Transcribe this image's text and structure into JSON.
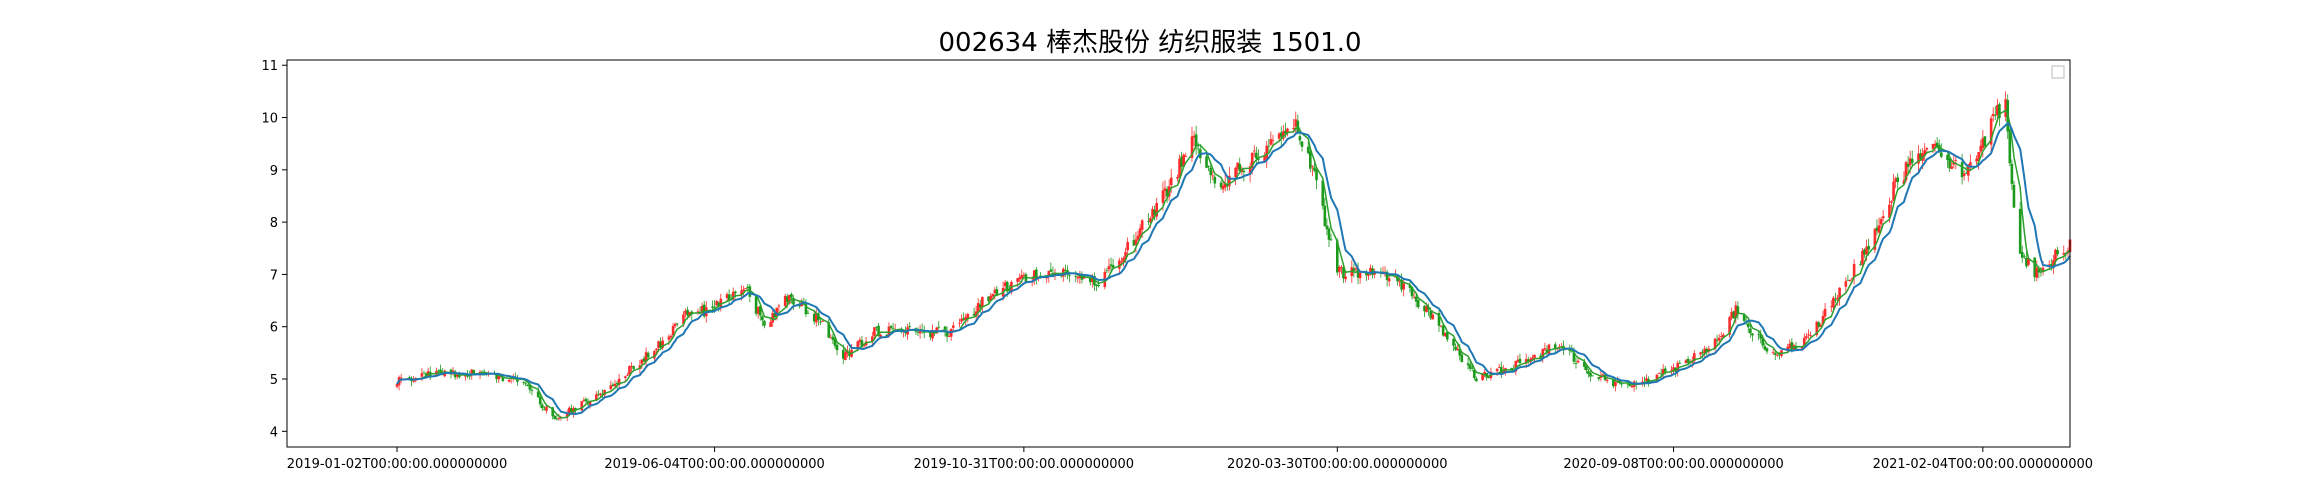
{
  "chart_data": {
    "type": "candlestick",
    "title": "002634 棒杰股份 纺织服装 1501.0",
    "xlabel": "",
    "ylabel": "",
    "ylim": [
      3.7,
      11.1
    ],
    "yticks": [
      4,
      5,
      6,
      7,
      8,
      9,
      10,
      11
    ],
    "ytick_labels": [
      "4",
      "5",
      "6",
      "7",
      "8",
      "9",
      "10",
      "11"
    ],
    "xrange": [
      "2018-11-10",
      "2021-03-18"
    ],
    "xticks": [
      "2019-01-02",
      "2019-06-04",
      "2019-10-31",
      "2020-03-30",
      "2020-09-08",
      "2021-02-04"
    ],
    "xtick_labels": [
      "2019-01-02T00:00:00.000000000",
      "2019-06-04T00:00:00.000000000",
      "2019-10-31T00:00:00.000000000",
      "2020-03-30T00:00:00.000000000",
      "2020-09-08T00:00:00.000000000",
      "2021-02-04T00:00:00.000000000"
    ],
    "grid": false,
    "legend": {
      "placement": "top-right",
      "entries": []
    },
    "colors": {
      "up": "#ff2a2a",
      "down": "#1c9a1c",
      "ma": "#1f77b4",
      "ma_secondary": "#2ca02c",
      "axis": "#000000"
    },
    "price_path": [
      [
        "2019-01-02",
        4.95
      ],
      [
        "2019-01-20",
        5.1
      ],
      [
        "2019-02-15",
        5.1
      ],
      [
        "2019-03-05",
        4.9
      ],
      [
        "2019-03-18",
        4.25
      ],
      [
        "2019-04-10",
        4.7
      ],
      [
        "2019-04-25",
        5.2
      ],
      [
        "2019-05-10",
        5.7
      ],
      [
        "2019-05-20",
        6.2
      ],
      [
        "2019-06-04",
        6.35
      ],
      [
        "2019-06-18",
        6.8
      ],
      [
        "2019-06-28",
        6.05
      ],
      [
        "2019-07-10",
        6.6
      ],
      [
        "2019-07-25",
        6.1
      ],
      [
        "2019-08-05",
        5.4
      ],
      [
        "2019-08-20",
        5.9
      ],
      [
        "2019-09-25",
        5.9
      ],
      [
        "2019-10-15",
        6.6
      ],
      [
        "2019-10-31",
        6.95
      ],
      [
        "2019-11-20",
        7.05
      ],
      [
        "2019-12-05",
        6.8
      ],
      [
        "2019-12-20",
        7.5
      ],
      [
        "2020-01-08",
        8.6
      ],
      [
        "2020-01-20",
        9.6
      ],
      [
        "2020-02-03",
        8.7
      ],
      [
        "2020-02-20",
        9.3
      ],
      [
        "2020-03-02",
        9.55
      ],
      [
        "2020-03-08",
        10.0
      ],
      [
        "2020-03-18",
        9.0
      ],
      [
        "2020-03-30",
        7.05
      ],
      [
        "2020-04-25",
        7.0
      ],
      [
        "2020-05-15",
        6.2
      ],
      [
        "2020-06-05",
        5.0
      ],
      [
        "2020-06-30",
        5.35
      ],
      [
        "2020-07-15",
        5.7
      ],
      [
        "2020-07-30",
        5.1
      ],
      [
        "2020-08-15",
        4.85
      ],
      [
        "2020-09-08",
        5.2
      ],
      [
        "2020-09-20",
        5.5
      ],
      [
        "2020-09-28",
        5.7
      ],
      [
        "2020-10-08",
        6.3
      ],
      [
        "2020-10-25",
        5.45
      ],
      [
        "2020-11-10",
        5.7
      ],
      [
        "2020-11-25",
        6.5
      ],
      [
        "2020-12-10",
        7.5
      ],
      [
        "2020-12-25",
        8.8
      ],
      [
        "2021-01-10",
        9.6
      ],
      [
        "2021-01-25",
        8.9
      ],
      [
        "2021-02-05",
        9.6
      ],
      [
        "2021-02-15",
        10.4
      ],
      [
        "2021-02-20",
        7.6
      ],
      [
        "2021-03-01",
        7.0
      ],
      [
        "2021-03-18",
        7.6
      ]
    ]
  }
}
